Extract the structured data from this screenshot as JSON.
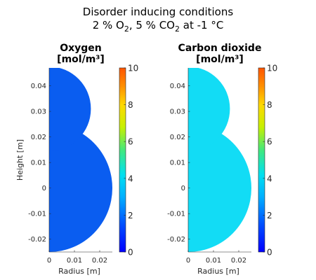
{
  "figure": {
    "title_line1": "Disorder inducing conditions",
    "title_line2": {
      "o2_value": "2 % O",
      "o2_sub": "2",
      "co2_value": ",  5 % CO",
      "co2_sub": "2",
      "temperature": "  at  -1 °C"
    }
  },
  "chart_data": [
    {
      "type": "heatmap",
      "title_line1": "Oxygen",
      "title_line2": "[mol/m³]",
      "xlabel": "Radius [m]",
      "ylabel": "Height [m]",
      "xlim": [
        0,
        0.025
      ],
      "ylim": [
        -0.025,
        0.047
      ],
      "xticks": [
        0,
        0.01,
        0.02
      ],
      "xtick_labels": [
        "0",
        "0.01",
        "0.02"
      ],
      "yticks": [
        -0.02,
        -0.01,
        0,
        0.01,
        0.02,
        0.03,
        0.04
      ],
      "ytick_labels": [
        "-0.02",
        "-0.01",
        "0",
        "0.01",
        "0.02",
        "0.03",
        "0.04"
      ],
      "clim": [
        0,
        10
      ],
      "colorbar_ticks": [
        0,
        2,
        4,
        6,
        8,
        10
      ],
      "colorbar_tick_labels": [
        "0",
        "2",
        "4",
        "6",
        "8",
        "10"
      ],
      "colormap": "jet",
      "domain_shape": {
        "lower_circle": {
          "center_r": 0,
          "center_z": 0,
          "radius": 0.025
        },
        "upper_circle": {
          "center_r": 0,
          "center_z": 0.031,
          "radius": 0.0165
        }
      },
      "field_value": 1.2,
      "fill_color": "#0a5df0"
    },
    {
      "type": "heatmap",
      "title_line1": "Carbon dioxide",
      "title_line2": "[mol/m³]",
      "xlabel": "Radius [m]",
      "ylabel": "",
      "xlim": [
        0,
        0.025
      ],
      "ylim": [
        -0.025,
        0.047
      ],
      "xticks": [
        0,
        0.01,
        0.02
      ],
      "xtick_labels": [
        "0",
        "0.01",
        "0.02"
      ],
      "yticks": [
        -0.02,
        -0.01,
        0,
        0.01,
        0.02,
        0.03,
        0.04
      ],
      "ytick_labels": [
        "-0.02",
        "-0.01",
        "0",
        "0.01",
        "0.02",
        "0.03",
        "0.04"
      ],
      "clim": [
        0,
        10
      ],
      "colorbar_ticks": [
        0,
        2,
        4,
        6,
        8,
        10
      ],
      "colorbar_tick_labels": [
        "0",
        "2",
        "4",
        "6",
        "8",
        "10"
      ],
      "colormap": "jet",
      "domain_shape": {
        "lower_circle": {
          "center_r": 0,
          "center_z": 0,
          "radius": 0.025
        },
        "upper_circle": {
          "center_r": 0,
          "center_z": 0.031,
          "radius": 0.0165
        }
      },
      "field_value": 3.3,
      "fill_color": "#12dcf5"
    }
  ]
}
